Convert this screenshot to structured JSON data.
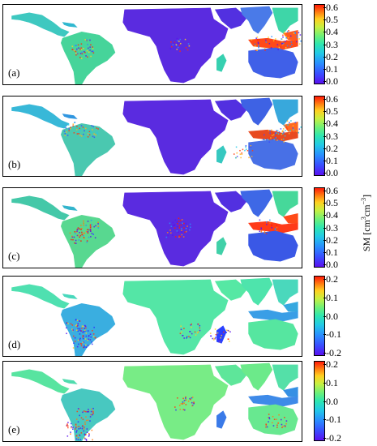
{
  "panels": [
    {
      "label": "(a)",
      "scale": "sm",
      "ticks": [
        "0.6",
        "0.5",
        "0.4",
        "0.3",
        "0.2",
        "0.1",
        "0.0"
      ]
    },
    {
      "label": "(b)",
      "scale": "sm",
      "ticks": [
        "0.6",
        "0.5",
        "0.4",
        "0.3",
        "0.2",
        "0.1",
        "0.0"
      ]
    },
    {
      "label": "(c)",
      "scale": "sm",
      "ticks": [
        "0.6",
        "0.5",
        "0.4",
        "0.3",
        "0.2",
        "0.1",
        "0.0"
      ]
    },
    {
      "label": "(d)",
      "scale": "diff",
      "ticks": [
        "0.2",
        "0.1",
        "0.0",
        "-0.1",
        "-0.2"
      ]
    },
    {
      "label": "(e)",
      "scale": "diff",
      "ticks": [
        "0.2",
        "0.1",
        "0.0",
        "-0.1",
        "-0.2"
      ]
    }
  ],
  "colorbar": {
    "colormap": "rainbow",
    "sm_range": [
      0.0,
      0.6
    ],
    "diff_range": [
      -0.2,
      0.2
    ],
    "unit_prefix": "SM [cm",
    "unit_sup1": "3",
    "unit_mid": "cm",
    "unit_sup2": "−3",
    "unit_suffix": "]"
  },
  "colors": {
    "water": "#ffffff",
    "low": "#5a2be0",
    "mid": "#3ed6b0",
    "high": "#ff2a10",
    "diff_mid": "#54e6a6"
  }
}
